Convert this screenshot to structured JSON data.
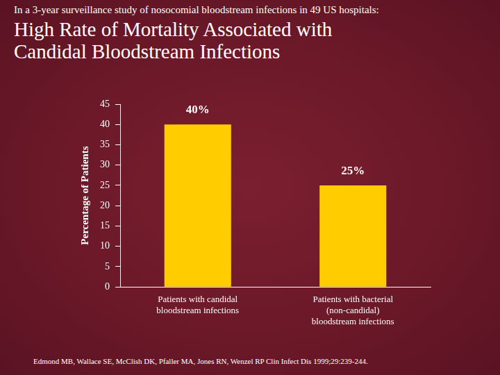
{
  "chart_data": {
    "type": "bar",
    "subtitle": "In a 3-year surveillance study of nosocomial bloodstream infections in 49 US hospitals:",
    "title": "High Rate of Mortality Associated with Candidal Bloodstream Infections",
    "y_label": "Percentage of Patients",
    "categories": [
      "Patients with candidal bloodstream infections",
      "Patients with bacterial (non-candidal) bloodstream infections"
    ],
    "values": [
      40,
      25
    ],
    "value_labels": [
      "40%",
      "25%"
    ],
    "data_labels": true,
    "color": "#ffcc00",
    "ylim": [
      0,
      45
    ],
    "yticks": [
      0,
      5,
      10,
      15,
      20,
      25,
      30,
      35,
      40,
      45
    ],
    "grid": false,
    "source": "Edmond MB, Wallace SE, McClish DK, Pfaller MA, Jones RN, Wenzel RP Clin Infect Dis 1999;29:239-244."
  }
}
